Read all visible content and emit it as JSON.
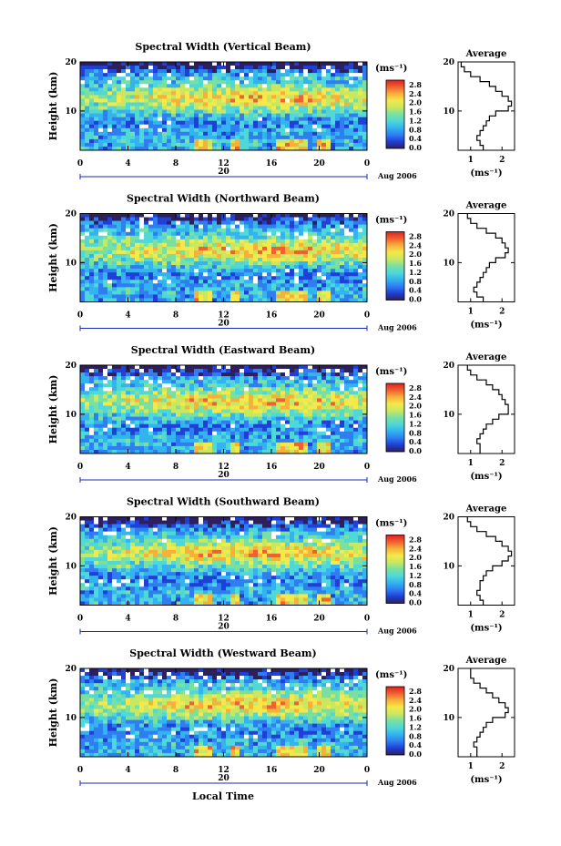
{
  "chart_data": [
    {
      "type": "heatmap",
      "title": "Spectral Width (Vertical Beam)",
      "ylabel": "Height (km)",
      "ylim": [
        2,
        20
      ],
      "xlim": [
        0,
        24
      ],
      "yticks": [
        "20",
        "10"
      ],
      "xticks": [
        "0",
        "4",
        "8",
        "12",
        "16",
        "20",
        "0"
      ],
      "date_label": "20",
      "month_label": "Aug 2006",
      "colorbar": {
        "unit": "(ms⁻¹)",
        "ticks": [
          "2.8",
          "2.4",
          "2.0",
          "1.6",
          "1.2",
          "0.8",
          "0.4",
          "0.0"
        ]
      },
      "profile": {
        "title": "Average",
        "xlabel": "(ms⁻¹)",
        "xticks": [
          "1",
          "2"
        ],
        "yticks": [
          "20",
          "10"
        ],
        "ylim": [
          2,
          20
        ],
        "xlim": [
          0.6,
          2.4
        ],
        "points": [
          [
            0.7,
            19.5
          ],
          [
            0.8,
            18.5
          ],
          [
            1.0,
            17.5
          ],
          [
            1.3,
            16.5
          ],
          [
            1.6,
            15.5
          ],
          [
            1.8,
            14.5
          ],
          [
            2.0,
            13.5
          ],
          [
            2.2,
            12.5
          ],
          [
            2.3,
            11.5
          ],
          [
            2.2,
            10.5
          ],
          [
            1.8,
            9.5
          ],
          [
            1.6,
            8.5
          ],
          [
            1.5,
            7.5
          ],
          [
            1.4,
            6.5
          ],
          [
            1.3,
            5.5
          ],
          [
            1.2,
            4.5
          ],
          [
            1.3,
            3.5
          ],
          [
            1.4,
            2.5
          ]
        ]
      }
    },
    {
      "type": "heatmap",
      "title": "Spectral Width (Northward Beam)",
      "ylabel": "Height (km)",
      "ylim": [
        2,
        20
      ],
      "xlim": [
        0,
        24
      ],
      "yticks": [
        "20",
        "10"
      ],
      "xticks": [
        "0",
        "4",
        "8",
        "12",
        "16",
        "20",
        "0"
      ],
      "date_label": "20",
      "month_label": "Aug 2006",
      "colorbar": {
        "unit": "(ms⁻¹)",
        "ticks": [
          "2.8",
          "2.4",
          "2.0",
          "1.6",
          "1.2",
          "0.8",
          "0.4",
          "0.0"
        ]
      },
      "profile": {
        "title": "Average",
        "xlabel": "(ms⁻¹)",
        "xticks": [
          "1",
          "2"
        ],
        "yticks": [
          "20",
          "10"
        ],
        "ylim": [
          2,
          20
        ],
        "xlim": [
          0.6,
          2.4
        ],
        "points": [
          [
            0.9,
            19.5
          ],
          [
            1.0,
            18.5
          ],
          [
            1.2,
            17.5
          ],
          [
            1.5,
            16.5
          ],
          [
            1.8,
            15.5
          ],
          [
            2.0,
            14.5
          ],
          [
            2.1,
            13.5
          ],
          [
            2.2,
            12.5
          ],
          [
            2.1,
            11.5
          ],
          [
            1.8,
            10.5
          ],
          [
            1.6,
            9.5
          ],
          [
            1.5,
            8.5
          ],
          [
            1.4,
            7.5
          ],
          [
            1.3,
            6.5
          ],
          [
            1.2,
            5.5
          ],
          [
            1.1,
            4.5
          ],
          [
            1.2,
            3.5
          ],
          [
            1.4,
            2.5
          ]
        ]
      }
    },
    {
      "type": "heatmap",
      "title": "Spectral Width (Eastward Beam)",
      "ylabel": "Height (km)",
      "ylim": [
        2,
        20
      ],
      "xlim": [
        0,
        24
      ],
      "yticks": [
        "20",
        "10"
      ],
      "xticks": [
        "0",
        "4",
        "8",
        "12",
        "16",
        "20",
        "0"
      ],
      "date_label": "20",
      "month_label": "Aug 2006",
      "colorbar": {
        "unit": "(ms⁻¹)",
        "ticks": [
          "2.8",
          "2.4",
          "2.0",
          "1.6",
          "1.2",
          "0.8",
          "0.4",
          "0.0"
        ]
      },
      "profile": {
        "title": "Average",
        "xlabel": "(ms⁻¹)",
        "xticks": [
          "1",
          "2"
        ],
        "yticks": [
          "20",
          "10"
        ],
        "ylim": [
          2,
          20
        ],
        "xlim": [
          0.6,
          2.4
        ],
        "points": [
          [
            0.9,
            19.5
          ],
          [
            1.0,
            18.5
          ],
          [
            1.2,
            17.5
          ],
          [
            1.5,
            16.5
          ],
          [
            1.7,
            15.5
          ],
          [
            1.9,
            14.5
          ],
          [
            2.0,
            13.5
          ],
          [
            2.1,
            12.5
          ],
          [
            2.2,
            11.5
          ],
          [
            2.2,
            10.5
          ],
          [
            1.9,
            9.5
          ],
          [
            1.7,
            8.5
          ],
          [
            1.5,
            7.5
          ],
          [
            1.4,
            6.5
          ],
          [
            1.3,
            5.5
          ],
          [
            1.2,
            4.5
          ],
          [
            1.3,
            3.5
          ],
          [
            1.3,
            2.5
          ]
        ]
      }
    },
    {
      "type": "heatmap",
      "title": "Spectral Width (Southward Beam)",
      "ylabel": "Height (km)",
      "ylim": [
        2,
        20
      ],
      "xlim": [
        0,
        24
      ],
      "yticks": [
        "20",
        "10"
      ],
      "xticks": [
        "0",
        "4",
        "8",
        "12",
        "16",
        "20",
        "0"
      ],
      "date_label": "20",
      "month_label": "Aug 2006",
      "colorbar": {
        "unit": "(ms⁻¹)",
        "ticks": [
          "2.8",
          "2.4",
          "2.0",
          "1.6",
          "1.2",
          "0.8",
          "0.4",
          "0.0"
        ]
      },
      "profile": {
        "title": "Average",
        "xlabel": "(ms⁻¹)",
        "xticks": [
          "1",
          "2"
        ],
        "yticks": [
          "20",
          "10"
        ],
        "ylim": [
          2,
          20
        ],
        "xlim": [
          0.6,
          2.4
        ],
        "points": [
          [
            0.9,
            19.5
          ],
          [
            1.0,
            18.5
          ],
          [
            1.2,
            17.5
          ],
          [
            1.5,
            16.5
          ],
          [
            1.8,
            15.5
          ],
          [
            2.0,
            14.5
          ],
          [
            2.2,
            13.5
          ],
          [
            2.3,
            12.5
          ],
          [
            2.2,
            11.5
          ],
          [
            2.0,
            10.5
          ],
          [
            1.7,
            9.5
          ],
          [
            1.5,
            8.5
          ],
          [
            1.4,
            7.5
          ],
          [
            1.3,
            6.5
          ],
          [
            1.3,
            5.5
          ],
          [
            1.2,
            4.5
          ],
          [
            1.3,
            3.5
          ],
          [
            1.4,
            2.5
          ]
        ]
      }
    },
    {
      "type": "heatmap",
      "title": "Spectral Width (Westward Beam)",
      "ylabel": "Height (km)",
      "ylim": [
        2,
        20
      ],
      "xlim": [
        0,
        24
      ],
      "yticks": [
        "20",
        "10"
      ],
      "xticks": [
        "0",
        "4",
        "8",
        "12",
        "16",
        "20",
        "0"
      ],
      "date_label": "20",
      "month_label": "Aug 2006",
      "colorbar": {
        "unit": "(ms⁻¹)",
        "ticks": [
          "2.8",
          "2.4",
          "2.0",
          "1.6",
          "1.2",
          "0.8",
          "0.4",
          "0.0"
        ]
      },
      "profile": {
        "title": "Average",
        "xlabel": "(ms⁻¹)",
        "xticks": [
          "1",
          "2"
        ],
        "yticks": [
          "20",
          "10"
        ],
        "ylim": [
          2,
          20
        ],
        "xlim": [
          0.6,
          2.4
        ],
        "points": [
          [
            1.0,
            19.5
          ],
          [
            1.0,
            18.5
          ],
          [
            1.1,
            17.5
          ],
          [
            1.3,
            16.5
          ],
          [
            1.5,
            15.5
          ],
          [
            1.7,
            14.5
          ],
          [
            1.9,
            13.5
          ],
          [
            2.1,
            12.5
          ],
          [
            2.2,
            11.5
          ],
          [
            2.1,
            10.5
          ],
          [
            1.7,
            9.5
          ],
          [
            1.5,
            8.5
          ],
          [
            1.4,
            7.5
          ],
          [
            1.3,
            6.5
          ],
          [
            1.2,
            5.5
          ],
          [
            1.1,
            4.5
          ],
          [
            1.2,
            3.5
          ],
          [
            1.2,
            2.5
          ]
        ]
      }
    }
  ],
  "xlabel": "Local Time",
  "colormap": [
    "#2c1f5c",
    "#1f3fd6",
    "#2e7ef2",
    "#33b3f0",
    "#4fd8d8",
    "#7ae0a0",
    "#c8e860",
    "#f4e84a",
    "#f7b03a",
    "#f06030",
    "#e02020",
    "#ffffff"
  ]
}
